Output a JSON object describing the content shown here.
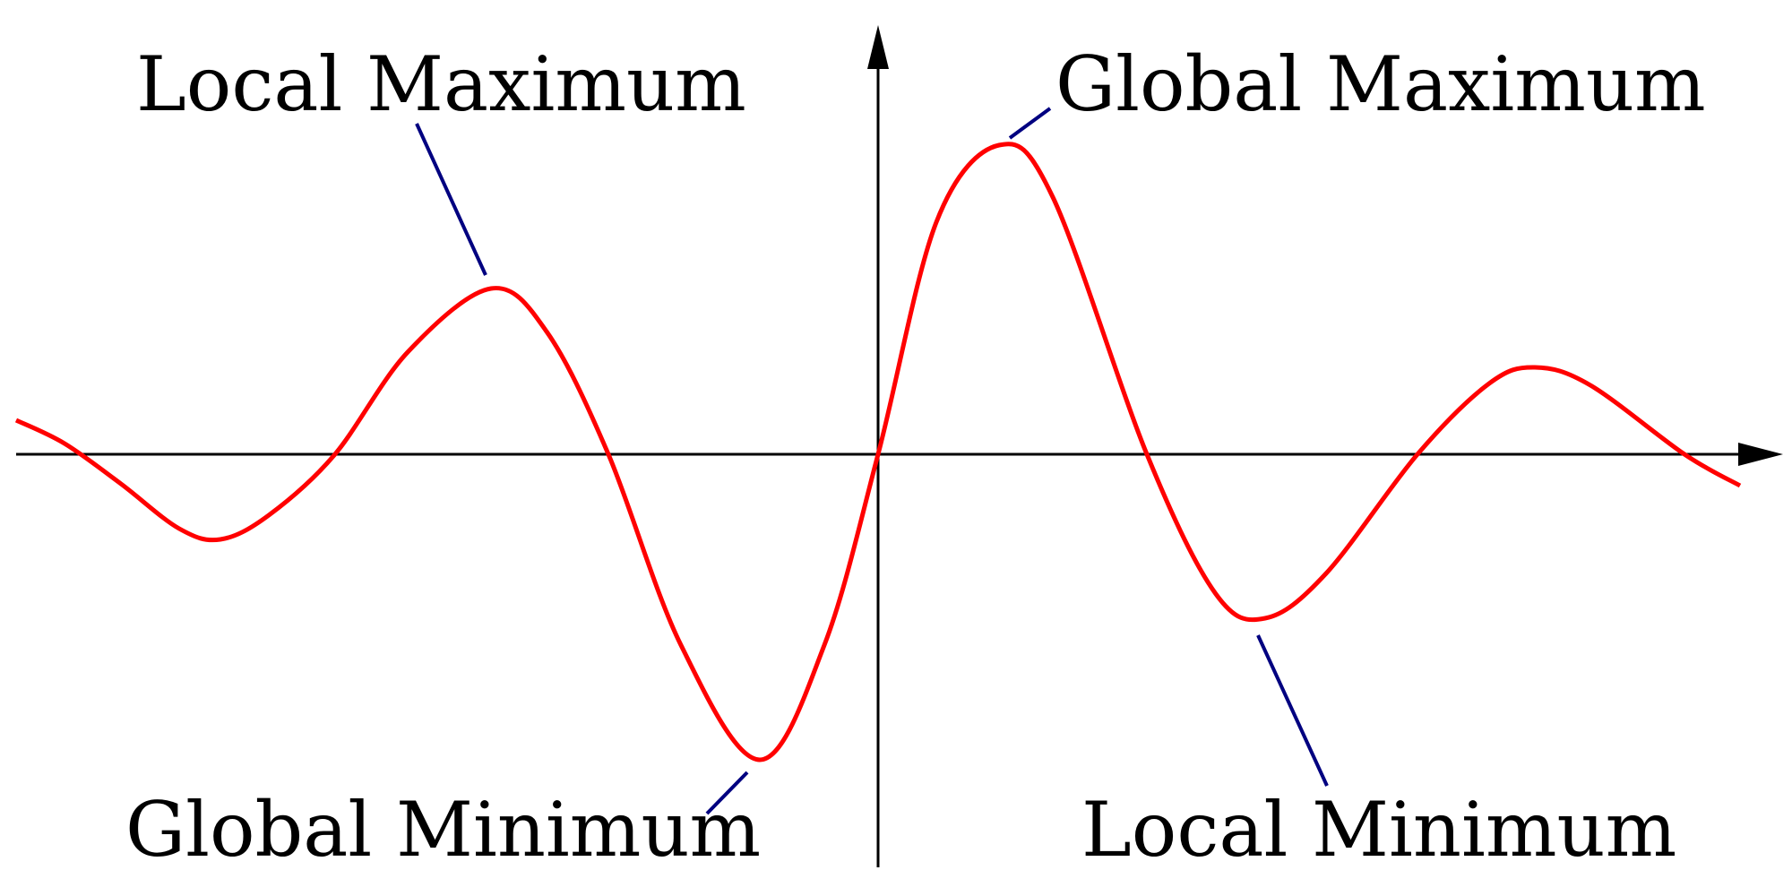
{
  "labels": {
    "local_maximum": "Local Maximum",
    "global_maximum": "Global Maximum",
    "global_minimum": "Global Minimum",
    "local_minimum": "Local Minimum"
  },
  "colors": {
    "curve": "#ff0000",
    "leader_lines": "#000080",
    "axes": "#000000",
    "text": "#000000",
    "background": "#ffffff"
  }
}
